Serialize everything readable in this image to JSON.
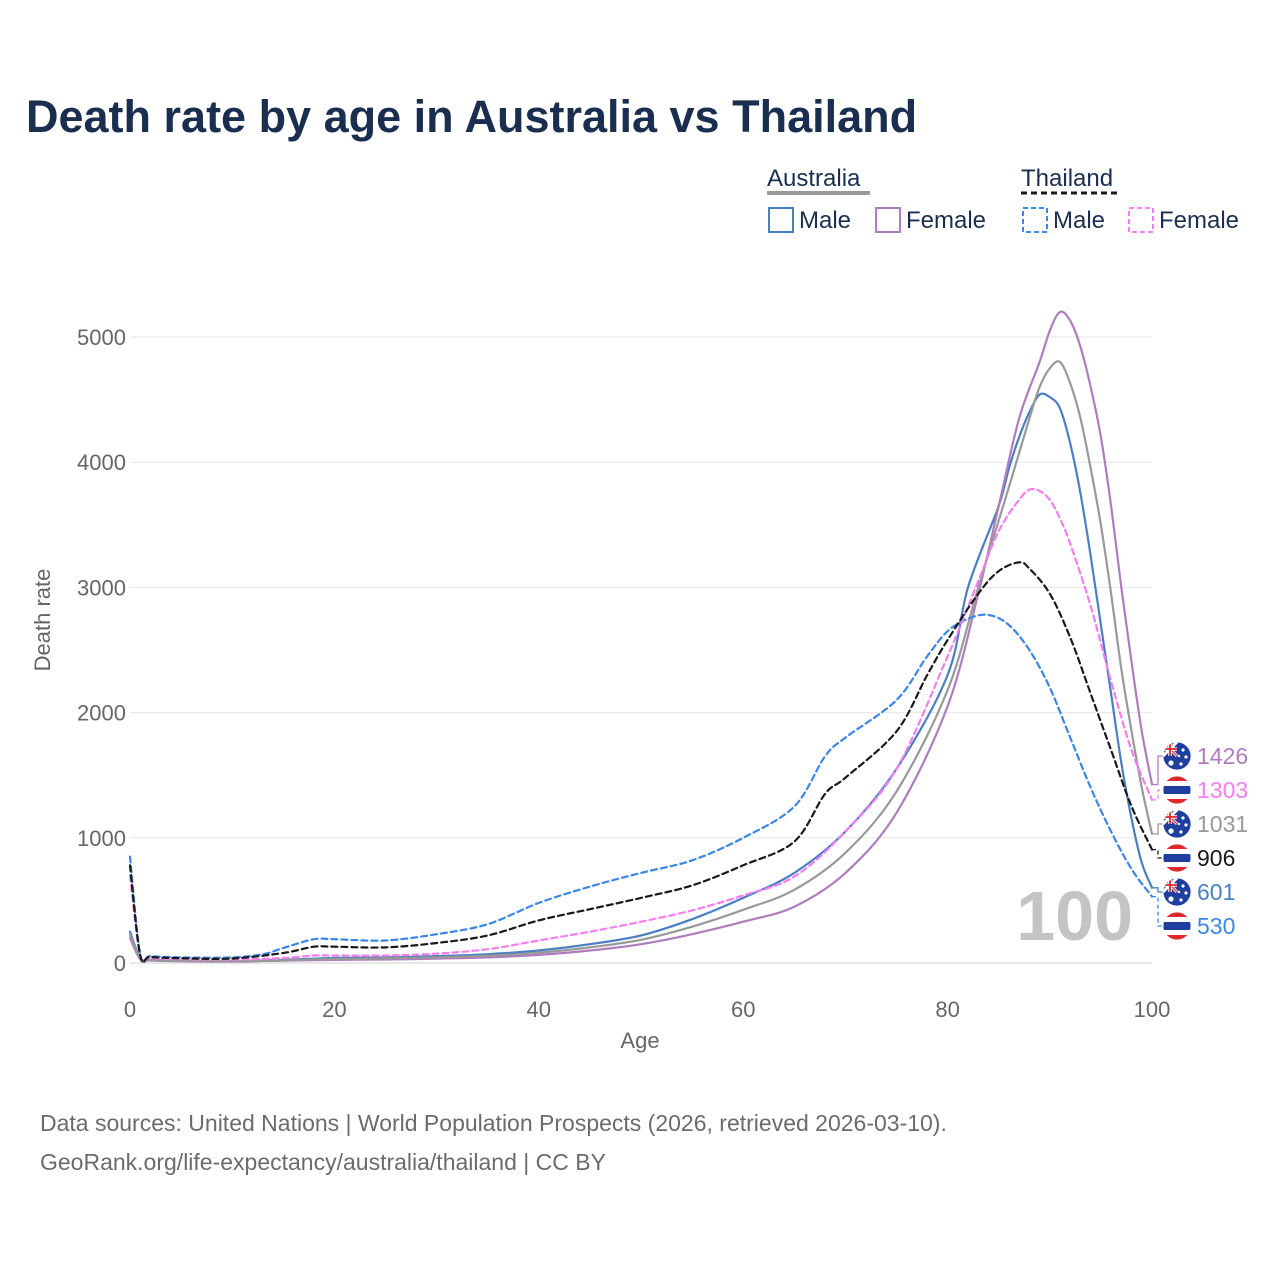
{
  "chart_data": {
    "type": "line",
    "title": "Death rate by age in Australia vs Thailand",
    "xlabel": "Age",
    "ylabel": "Death rate",
    "xlim": [
      0,
      100
    ],
    "ylim": [
      0,
      5400
    ],
    "xticks": [
      "0",
      "20",
      "40",
      "60",
      "80",
      "100"
    ],
    "yticks": [
      "0",
      "1000",
      "2000",
      "3000",
      "4000",
      "5000"
    ],
    "grid": "horizontal",
    "highlight_age": "100",
    "legend": {
      "groups": [
        {
          "country": "Australia",
          "items": [
            "Male",
            "Female"
          ]
        },
        {
          "country": "Thailand",
          "items": [
            "Male",
            "Female"
          ]
        }
      ]
    },
    "series": [
      {
        "name": "Australia Male",
        "country": "Australia",
        "sex": "Male",
        "dashed": false,
        "color": "#4a7fc1",
        "end_value": "601",
        "points": [
          [
            0,
            250
          ],
          [
            1,
            40
          ],
          [
            2,
            25
          ],
          [
            5,
            20
          ],
          [
            10,
            15
          ],
          [
            15,
            25
          ],
          [
            20,
            40
          ],
          [
            25,
            45
          ],
          [
            30,
            55
          ],
          [
            35,
            70
          ],
          [
            40,
            100
          ],
          [
            45,
            150
          ],
          [
            50,
            220
          ],
          [
            55,
            350
          ],
          [
            60,
            520
          ],
          [
            65,
            720
          ],
          [
            70,
            1050
          ],
          [
            75,
            1550
          ],
          [
            80,
            2300
          ],
          [
            82,
            3000
          ],
          [
            85,
            3650
          ],
          [
            86,
            3950
          ],
          [
            87,
            4200
          ],
          [
            88,
            4400
          ],
          [
            89,
            4540
          ],
          [
            90,
            4520
          ],
          [
            91,
            4430
          ],
          [
            92,
            4150
          ],
          [
            93,
            3750
          ],
          [
            94,
            3250
          ],
          [
            95,
            2700
          ],
          [
            96,
            2150
          ],
          [
            97,
            1600
          ],
          [
            98,
            1150
          ],
          [
            99,
            800
          ],
          [
            100,
            601
          ]
        ]
      },
      {
        "name": "Australia Female",
        "country": "Australia",
        "sex": "Female",
        "dashed": false,
        "color": "#b07cc0",
        "end_value": "1426",
        "points": [
          [
            0,
            200
          ],
          [
            1,
            30
          ],
          [
            2,
            20
          ],
          [
            5,
            15
          ],
          [
            10,
            12
          ],
          [
            15,
            18
          ],
          [
            20,
            25
          ],
          [
            25,
            28
          ],
          [
            30,
            35
          ],
          [
            35,
            45
          ],
          [
            40,
            65
          ],
          [
            45,
            100
          ],
          [
            50,
            150
          ],
          [
            55,
            230
          ],
          [
            60,
            330
          ],
          [
            65,
            450
          ],
          [
            70,
            720
          ],
          [
            75,
            1200
          ],
          [
            80,
            2050
          ],
          [
            83,
            2950
          ],
          [
            85,
            3650
          ],
          [
            87,
            4350
          ],
          [
            89,
            4800
          ],
          [
            90,
            5050
          ],
          [
            91,
            5200
          ],
          [
            92,
            5130
          ],
          [
            93,
            4920
          ],
          [
            94,
            4600
          ],
          [
            95,
            4200
          ],
          [
            96,
            3650
          ],
          [
            97,
            3000
          ],
          [
            98,
            2400
          ],
          [
            99,
            1850
          ],
          [
            100,
            1426
          ]
        ]
      },
      {
        "name": "Australia Both",
        "country": "Australia",
        "sex": "Both",
        "dashed": false,
        "color": "#999999",
        "end_value": "1031",
        "points": [
          [
            0,
            225
          ],
          [
            1,
            35
          ],
          [
            2,
            22
          ],
          [
            5,
            18
          ],
          [
            10,
            14
          ],
          [
            15,
            21
          ],
          [
            20,
            32
          ],
          [
            25,
            37
          ],
          [
            30,
            45
          ],
          [
            35,
            58
          ],
          [
            40,
            82
          ],
          [
            45,
            125
          ],
          [
            50,
            185
          ],
          [
            55,
            290
          ],
          [
            60,
            425
          ],
          [
            65,
            585
          ],
          [
            70,
            880
          ],
          [
            75,
            1370
          ],
          [
            80,
            2180
          ],
          [
            83,
            3000
          ],
          [
            86,
            3800
          ],
          [
            88,
            4350
          ],
          [
            89,
            4600
          ],
          [
            90,
            4750
          ],
          [
            91,
            4800
          ],
          [
            92,
            4630
          ],
          [
            93,
            4350
          ],
          [
            94,
            3950
          ],
          [
            95,
            3500
          ],
          [
            96,
            2950
          ],
          [
            97,
            2350
          ],
          [
            98,
            1850
          ],
          [
            99,
            1400
          ],
          [
            100,
            1031
          ]
        ]
      },
      {
        "name": "Thailand Male",
        "country": "Thailand",
        "sex": "Male",
        "dashed": true,
        "color": "#3b86e6",
        "end_value": "530",
        "points": [
          [
            0,
            850
          ],
          [
            1,
            70
          ],
          [
            2,
            55
          ],
          [
            5,
            45
          ],
          [
            10,
            45
          ],
          [
            13,
            70
          ],
          [
            15,
            120
          ],
          [
            18,
            190
          ],
          [
            20,
            190
          ],
          [
            25,
            180
          ],
          [
            30,
            230
          ],
          [
            35,
            310
          ],
          [
            40,
            480
          ],
          [
            45,
            610
          ],
          [
            50,
            720
          ],
          [
            55,
            820
          ],
          [
            60,
            1000
          ],
          [
            65,
            1250
          ],
          [
            68,
            1650
          ],
          [
            70,
            1800
          ],
          [
            75,
            2100
          ],
          [
            78,
            2450
          ],
          [
            80,
            2650
          ],
          [
            82,
            2750
          ],
          [
            84,
            2780
          ],
          [
            86,
            2700
          ],
          [
            88,
            2500
          ],
          [
            90,
            2200
          ],
          [
            92,
            1800
          ],
          [
            94,
            1400
          ],
          [
            96,
            1050
          ],
          [
            98,
            750
          ],
          [
            100,
            530
          ]
        ]
      },
      {
        "name": "Thailand Female",
        "country": "Thailand",
        "sex": "Female",
        "dashed": true,
        "color": "#f47ef0",
        "end_value": "1303",
        "points": [
          [
            0,
            700
          ],
          [
            1,
            55
          ],
          [
            2,
            40
          ],
          [
            5,
            30
          ],
          [
            10,
            28
          ],
          [
            15,
            40
          ],
          [
            18,
            60
          ],
          [
            20,
            60
          ],
          [
            25,
            60
          ],
          [
            30,
            75
          ],
          [
            35,
            110
          ],
          [
            40,
            180
          ],
          [
            45,
            250
          ],
          [
            50,
            330
          ],
          [
            55,
            420
          ],
          [
            60,
            540
          ],
          [
            65,
            690
          ],
          [
            70,
            1050
          ],
          [
            75,
            1550
          ],
          [
            80,
            2450
          ],
          [
            83,
            3050
          ],
          [
            85,
            3450
          ],
          [
            87,
            3700
          ],
          [
            88,
            3780
          ],
          [
            89,
            3770
          ],
          [
            90,
            3700
          ],
          [
            91,
            3550
          ],
          [
            92,
            3350
          ],
          [
            94,
            2850
          ],
          [
            96,
            2250
          ],
          [
            98,
            1700
          ],
          [
            100,
            1303
          ]
        ]
      },
      {
        "name": "Thailand Both",
        "country": "Thailand",
        "sex": "Both",
        "dashed": true,
        "color": "#1a1a1a",
        "end_value": "906",
        "points": [
          [
            0,
            780
          ],
          [
            1,
            62
          ],
          [
            2,
            48
          ],
          [
            5,
            38
          ],
          [
            10,
            36
          ],
          [
            15,
            80
          ],
          [
            18,
            130
          ],
          [
            20,
            130
          ],
          [
            25,
            125
          ],
          [
            30,
            160
          ],
          [
            35,
            220
          ],
          [
            40,
            340
          ],
          [
            45,
            430
          ],
          [
            50,
            520
          ],
          [
            55,
            620
          ],
          [
            60,
            780
          ],
          [
            65,
            970
          ],
          [
            68,
            1350
          ],
          [
            70,
            1480
          ],
          [
            75,
            1850
          ],
          [
            78,
            2300
          ],
          [
            80,
            2580
          ],
          [
            83,
            2950
          ],
          [
            85,
            3130
          ],
          [
            87,
            3200
          ],
          [
            88,
            3150
          ],
          [
            90,
            2950
          ],
          [
            92,
            2600
          ],
          [
            94,
            2150
          ],
          [
            96,
            1700
          ],
          [
            98,
            1250
          ],
          [
            100,
            906
          ]
        ]
      }
    ]
  },
  "source": {
    "line1": "Data sources: United Nations | World Population Prospects (2026, retrieved 2026-03-10).",
    "line2": "GeoRank.org/life-expectancy/australia/thailand | CC BY"
  }
}
